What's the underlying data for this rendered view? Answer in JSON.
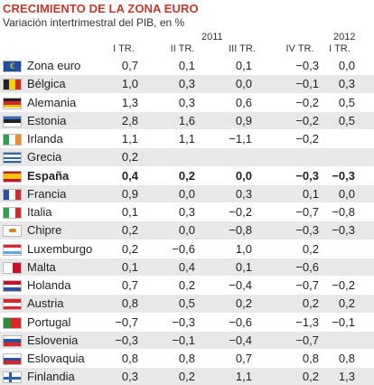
{
  "title": "CRECIMIENTO DE LA ZONA EURO",
  "subtitle": "Variación intertrimestral del PIB, en %",
  "chart_data": {
    "type": "table",
    "years": [
      "2011",
      "2012"
    ],
    "columns": [
      "I TR.",
      "II TR.",
      "III TR.",
      "IV TR.",
      "I TR."
    ],
    "rows": [
      {
        "name": "Zona euro",
        "flag": "eu-flag-icon",
        "values": [
          "0,7",
          "0,1",
          "0,1",
          "−0,3",
          "0,0"
        ]
      },
      {
        "name": "Bélgica",
        "flag": "belgium-flag-icon",
        "values": [
          "1,0",
          "0,3",
          "0,0",
          "−0,1",
          "0,3"
        ]
      },
      {
        "name": "Alemania",
        "flag": "germany-flag-icon",
        "values": [
          "1,3",
          "0,3",
          "0,6",
          "−0,2",
          "0,5"
        ]
      },
      {
        "name": "Estonia",
        "flag": "estonia-flag-icon",
        "values": [
          "2,8",
          "1,6",
          "0,9",
          "−0,2",
          "0,5"
        ]
      },
      {
        "name": "Irlanda",
        "flag": "ireland-flag-icon",
        "values": [
          "1,1",
          "1,1",
          "−1,1",
          "−0,2",
          ""
        ]
      },
      {
        "name": "Grecia",
        "flag": "greece-flag-icon",
        "values": [
          "0,2",
          "",
          "",
          "",
          ""
        ]
      },
      {
        "name": "España",
        "flag": "spain-flag-icon",
        "bold": true,
        "values": [
          "0,4",
          "0,2",
          "0,0",
          "−0,3",
          "−0,3"
        ]
      },
      {
        "name": "Francia",
        "flag": "france-flag-icon",
        "values": [
          "0,9",
          "0,0",
          "0,3",
          "0,1",
          "0,0"
        ]
      },
      {
        "name": "Italia",
        "flag": "italy-flag-icon",
        "values": [
          "0,1",
          "0,3",
          "−0,2",
          "−0,7",
          "−0,8"
        ]
      },
      {
        "name": "Chipre",
        "flag": "cyprus-flag-icon",
        "values": [
          "0,2",
          "0,0",
          "−0,8",
          "−0,3",
          "−0,3"
        ]
      },
      {
        "name": "Luxemburgo",
        "flag": "luxembourg-flag-icon",
        "values": [
          "0,2",
          "−0,6",
          "1,0",
          "0,2",
          ""
        ]
      },
      {
        "name": "Malta",
        "flag": "malta-flag-icon",
        "values": [
          "0,1",
          "0,4",
          "0,1",
          "−0,6",
          ""
        ]
      },
      {
        "name": "Holanda",
        "flag": "netherlands-flag-icon",
        "values": [
          "0,7",
          "0,2",
          "−0,4",
          "−0,7",
          "−0,2"
        ]
      },
      {
        "name": "Austria",
        "flag": "austria-flag-icon",
        "values": [
          "0,8",
          "0,5",
          "0,2",
          "0,2",
          "0,2"
        ]
      },
      {
        "name": "Portugal",
        "flag": "portugal-flag-icon",
        "values": [
          "−0,7",
          "−0,3",
          "−0,6",
          "−1,3",
          "−0,1"
        ]
      },
      {
        "name": "Eslovenia",
        "flag": "slovenia-flag-icon",
        "values": [
          "−0,3",
          "−0,1",
          "−0,4",
          "−0,7",
          ""
        ]
      },
      {
        "name": "Eslovaquia",
        "flag": "slovakia-flag-icon",
        "values": [
          "0,8",
          "0,8",
          "0,7",
          "0,8",
          "0,8"
        ]
      },
      {
        "name": "Finlandia",
        "flag": "finland-flag-icon",
        "values": [
          "0,3",
          "0,2",
          "1,1",
          "0,2",
          "1,3"
        ]
      }
    ],
    "colors": {
      "title": "#c0392b",
      "row_shade": "#e8e8e8"
    }
  }
}
